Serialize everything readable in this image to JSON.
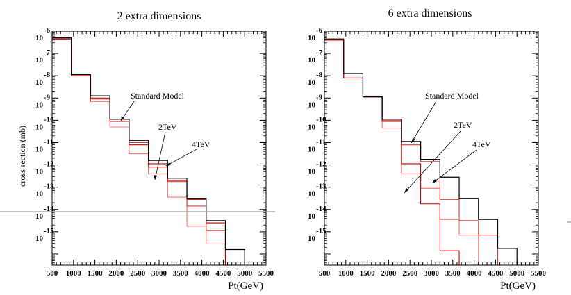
{
  "chart_data": [
    {
      "type": "line",
      "title": "2 extra dimensions",
      "xlabel": "Pt(GeV)",
      "ylabel": "cross section (mb)",
      "xlim": [
        500,
        5500
      ],
      "ylim": [
        -16.5,
        -6
      ],
      "y_scale": "log10",
      "x_ticks": [
        500,
        1000,
        1500,
        2000,
        2500,
        3000,
        3500,
        4000,
        4500,
        5000,
        5500
      ],
      "y_ticks": [
        -6,
        -7,
        -8,
        -9,
        -10,
        -11,
        -12,
        -13,
        -14,
        -15
      ],
      "bin_edges": [
        500,
        950,
        1400,
        1850,
        2300,
        2750,
        3200,
        3650,
        4100,
        4550,
        5000
      ],
      "series": [
        {
          "name": "Standard Model",
          "color": "#000000",
          "values": [
            -6.3,
            -7.95,
            -8.9,
            -9.95,
            -10.9,
            -11.8,
            -12.6,
            -13.5,
            -14.5,
            -15.8
          ]
        },
        {
          "name": "",
          "color": "#c40000",
          "values": [
            -6.35,
            -8.0,
            -9.0,
            -10.05,
            -11.1,
            -11.95,
            -12.7,
            -13.55,
            -14.6,
            -16.5
          ]
        },
        {
          "name": "4TeV",
          "color": "#d83a3a",
          "values": [
            -6.35,
            -8.0,
            -9.15,
            -9.95,
            -11.0,
            -12.1,
            -12.75,
            -13.85,
            -14.95,
            -16.5
          ]
        },
        {
          "name": "2TeV",
          "color": "#ff7070",
          "values": [
            -6.35,
            -8.0,
            -9.05,
            -10.3,
            -11.5,
            -12.4,
            -13.45,
            -14.75,
            -15.55,
            -16.5
          ]
        }
      ],
      "annotations": [
        {
          "text": "Standard Model"
        },
        {
          "text": "2TeV"
        },
        {
          "text": "4TeV"
        }
      ],
      "reference_line": {
        "y": -14.1
      }
    },
    {
      "type": "line",
      "title": "6 extra dimensions",
      "xlabel": "Pt(GeV)",
      "ylabel": "",
      "xlim": [
        500,
        5500
      ],
      "ylim": [
        -16.5,
        -6
      ],
      "y_scale": "log10",
      "x_ticks": [
        500,
        1000,
        1500,
        2000,
        2500,
        3000,
        3500,
        4000,
        4500,
        5000,
        5500
      ],
      "y_ticks": [
        -6,
        -7,
        -8,
        -9,
        -10,
        -11,
        -12,
        -13,
        -14,
        -15
      ],
      "bin_edges": [
        500,
        950,
        1400,
        1850,
        2300,
        2750,
        3200,
        3650,
        4100,
        4550,
        5000
      ],
      "series": [
        {
          "name": "Standard Model",
          "color": "#000000",
          "values": [
            -6.35,
            -7.9,
            -8.95,
            -9.95,
            -10.95,
            -11.75,
            -12.55,
            -13.5,
            -14.45,
            -15.75
          ]
        },
        {
          "name": "",
          "color": "#c40000",
          "values": [
            -6.4,
            -8.1,
            -8.95,
            -10.05,
            -11.95,
            -13.75,
            -15.85,
            -16.5,
            -16.5,
            -16.5
          ]
        },
        {
          "name": "4TeV",
          "color": "#d83a3a",
          "values": [
            -6.4,
            -8.1,
            -8.95,
            -10.0,
            -11.1,
            -11.85,
            -13.55,
            -14.5,
            -15.15,
            -16.5
          ]
        },
        {
          "name": "2TeV",
          "color": "#ff7070",
          "values": [
            -6.4,
            -8.1,
            -8.95,
            -10.35,
            -12.4,
            -13.05,
            -14.45,
            -15.15,
            -16.5,
            -16.5
          ]
        }
      ],
      "annotations": [
        {
          "text": "Standard Model"
        },
        {
          "text": "2TeV"
        },
        {
          "text": "4TeV"
        }
      ]
    }
  ]
}
